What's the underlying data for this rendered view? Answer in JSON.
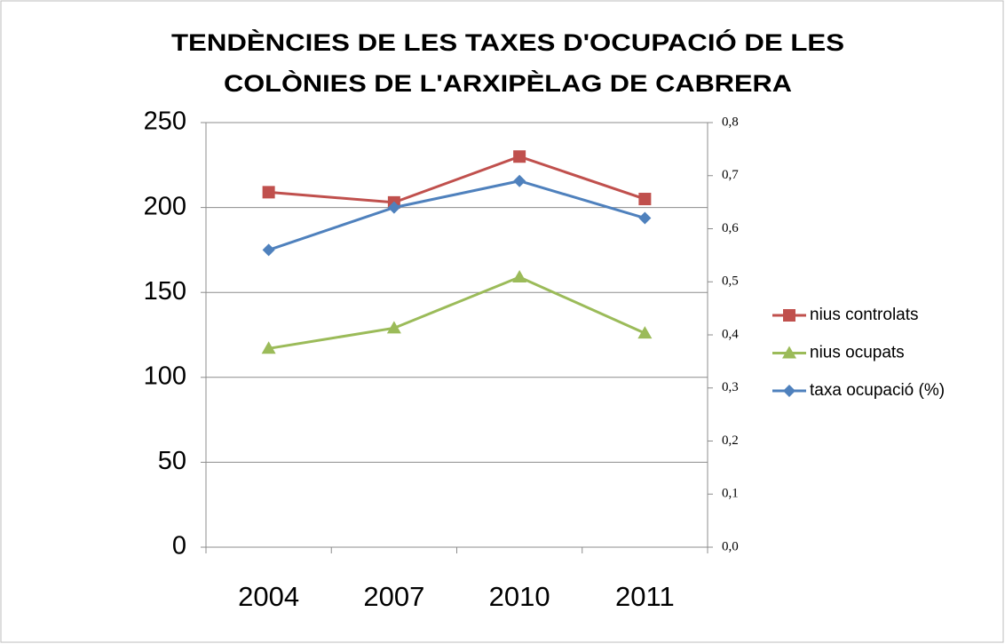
{
  "chart_data": {
    "type": "line",
    "title": [
      "TENDÈNCIES DE LES TAXES D'OCUPACIÓ DE LES",
      "COLÒNIES DE L'ARXIPÈLAG DE CABRERA"
    ],
    "categories": [
      "2004",
      "2007",
      "2010",
      "2011"
    ],
    "series": [
      {
        "name": "nius controlats",
        "color": "#c0504d",
        "marker": "square",
        "values": [
          209,
          203,
          230,
          205
        ]
      },
      {
        "name": "nius ocupats",
        "color": "#9bbb59",
        "marker": "triangle",
        "values": [
          117,
          129,
          159,
          126
        ]
      },
      {
        "name": "taxa ocupació (%)",
        "color": "#4f81bd",
        "marker": "diamond",
        "axis": "y2",
        "values": [
          0.56,
          0.64,
          0.69,
          0.62
        ]
      }
    ],
    "ylim": [
      0,
      250
    ],
    "yticks": [
      0,
      50,
      100,
      150,
      200,
      250
    ],
    "y2lim": [
      0,
      0.8
    ],
    "y2ticks": [
      {
        "value": 0,
        "label": "0,0"
      },
      {
        "value": 0.1,
        "label": "0,1"
      },
      {
        "value": 0.2,
        "label": "0,2"
      },
      {
        "value": 0.3,
        "label": "0,3"
      },
      {
        "value": 0.4,
        "label": "0,4"
      },
      {
        "value": 0.5,
        "label": "0,5"
      },
      {
        "value": 0.6,
        "label": "0,6"
      },
      {
        "value": 0.7,
        "label": "0,7"
      },
      {
        "value": 0.8,
        "label": "0,8"
      }
    ],
    "grid": true,
    "legend": "right"
  }
}
